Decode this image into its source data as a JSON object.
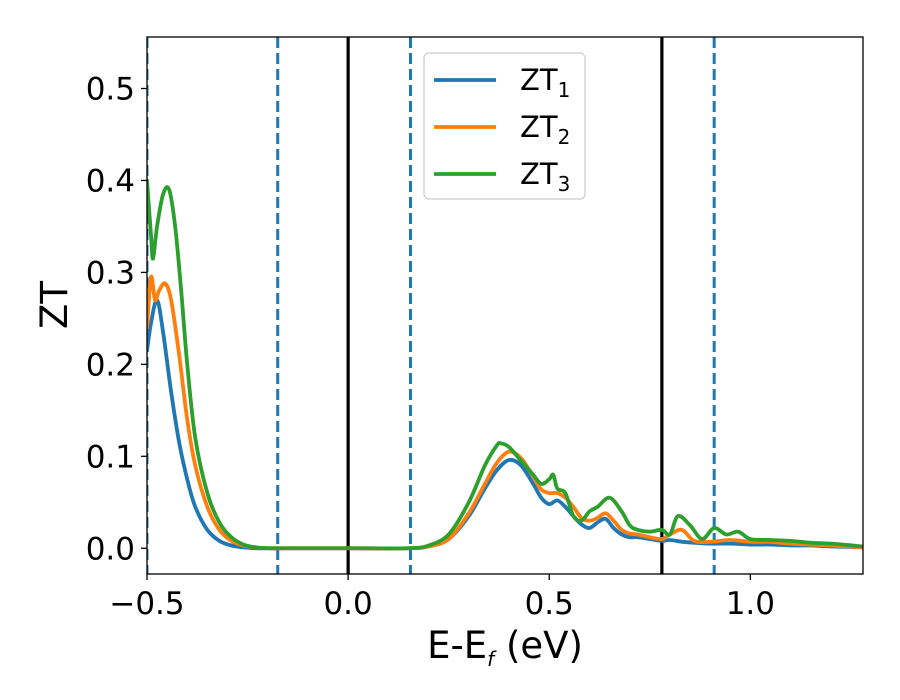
{
  "chart_data": {
    "type": "line",
    "title": "",
    "xlabel": {
      "main": "E-E",
      "sub": "f",
      "unit": " (eV)"
    },
    "ylabel": "ZT",
    "xlim": [
      -0.5,
      1.28
    ],
    "ylim": [
      -0.028,
      0.556
    ],
    "xticks": [
      -0.5,
      0.0,
      0.5,
      1.0
    ],
    "xtick_labels": [
      "−0.5",
      "0.0",
      "0.5",
      "1.0"
    ],
    "yticks": [
      0.0,
      0.1,
      0.2,
      0.3,
      0.4,
      0.5
    ],
    "ytick_labels": [
      "0.0",
      "0.1",
      "0.2",
      "0.3",
      "0.4",
      "0.5"
    ],
    "grid": false,
    "legend": "top-center",
    "vlines": [
      {
        "x": -0.5,
        "style": "dashed",
        "color": "#1f77b4"
      },
      {
        "x": -0.175,
        "style": "dashed",
        "color": "#1f77b4"
      },
      {
        "x": 0.0,
        "style": "solid",
        "color": "#000000"
      },
      {
        "x": 0.155,
        "style": "dashed",
        "color": "#1f77b4"
      },
      {
        "x": 0.78,
        "style": "solid",
        "color": "#000000"
      },
      {
        "x": 0.91,
        "style": "dashed",
        "color": "#1f77b4"
      }
    ],
    "series": [
      {
        "name": "ZT",
        "sub": "1",
        "color": "#1f77b4",
        "x": [
          -0.5,
          -0.49,
          -0.475,
          -0.46,
          -0.44,
          -0.42,
          -0.4,
          -0.38,
          -0.35,
          -0.32,
          -0.29,
          -0.26,
          -0.23,
          -0.2,
          -0.15,
          0.0,
          0.15,
          0.2,
          0.25,
          0.3,
          0.34,
          0.37,
          0.4,
          0.43,
          0.46,
          0.48,
          0.5,
          0.52,
          0.54,
          0.56,
          0.58,
          0.6,
          0.62,
          0.64,
          0.66,
          0.68,
          0.7,
          0.72,
          0.75,
          0.78,
          0.8,
          0.83,
          0.86,
          0.9,
          0.95,
          1.0,
          1.05,
          1.1,
          1.15,
          1.2,
          1.28
        ],
        "y": [
          0.215,
          0.245,
          0.27,
          0.235,
          0.17,
          0.115,
          0.075,
          0.045,
          0.02,
          0.008,
          0.003,
          0.001,
          0.0,
          0.0,
          0.0,
          0.0,
          0.0,
          0.002,
          0.01,
          0.035,
          0.065,
          0.085,
          0.096,
          0.09,
          0.07,
          0.055,
          0.048,
          0.052,
          0.045,
          0.035,
          0.026,
          0.022,
          0.028,
          0.032,
          0.022,
          0.015,
          0.012,
          0.012,
          0.01,
          0.008,
          0.009,
          0.007,
          0.006,
          0.005,
          0.005,
          0.004,
          0.004,
          0.003,
          0.003,
          0.002,
          0.001
        ]
      },
      {
        "name": "ZT",
        "sub": "2",
        "color": "#ff7f0e",
        "x": [
          -0.5,
          -0.49,
          -0.48,
          -0.47,
          -0.455,
          -0.44,
          -0.42,
          -0.4,
          -0.38,
          -0.35,
          -0.32,
          -0.29,
          -0.26,
          -0.23,
          -0.2,
          -0.15,
          0.0,
          0.15,
          0.2,
          0.25,
          0.3,
          0.34,
          0.37,
          0.4,
          0.43,
          0.46,
          0.48,
          0.5,
          0.52,
          0.54,
          0.56,
          0.58,
          0.6,
          0.62,
          0.64,
          0.66,
          0.68,
          0.7,
          0.72,
          0.75,
          0.78,
          0.8,
          0.83,
          0.86,
          0.9,
          0.95,
          1.0,
          1.05,
          1.1,
          1.15,
          1.2,
          1.28
        ],
        "y": [
          0.24,
          0.295,
          0.27,
          0.28,
          0.288,
          0.27,
          0.21,
          0.14,
          0.09,
          0.045,
          0.02,
          0.008,
          0.003,
          0.001,
          0.0,
          0.0,
          0.0,
          0.0,
          0.002,
          0.01,
          0.038,
          0.07,
          0.093,
          0.105,
          0.098,
          0.078,
          0.064,
          0.06,
          0.06,
          0.055,
          0.045,
          0.033,
          0.03,
          0.033,
          0.038,
          0.03,
          0.02,
          0.016,
          0.015,
          0.012,
          0.01,
          0.015,
          0.02,
          0.008,
          0.007,
          0.009,
          0.007,
          0.007,
          0.005,
          0.004,
          0.003,
          0.001
        ]
      },
      {
        "name": "ZT",
        "sub": "3",
        "color": "#2ca02c",
        "x": [
          -0.5,
          -0.49,
          -0.485,
          -0.475,
          -0.46,
          -0.445,
          -0.43,
          -0.415,
          -0.4,
          -0.38,
          -0.35,
          -0.32,
          -0.29,
          -0.26,
          -0.23,
          -0.2,
          -0.15,
          0.0,
          0.15,
          0.2,
          0.25,
          0.3,
          0.34,
          0.37,
          0.38,
          0.4,
          0.43,
          0.46,
          0.48,
          0.5,
          0.51,
          0.52,
          0.54,
          0.56,
          0.58,
          0.6,
          0.62,
          0.65,
          0.68,
          0.7,
          0.72,
          0.75,
          0.78,
          0.8,
          0.82,
          0.85,
          0.88,
          0.91,
          0.94,
          0.97,
          1.0,
          1.05,
          1.1,
          1.15,
          1.2,
          1.28
        ],
        "y": [
          0.4,
          0.34,
          0.315,
          0.35,
          0.385,
          0.39,
          0.35,
          0.28,
          0.2,
          0.12,
          0.06,
          0.028,
          0.012,
          0.004,
          0.001,
          0.0,
          0.0,
          0.0,
          0.0,
          0.003,
          0.015,
          0.05,
          0.09,
          0.112,
          0.114,
          0.11,
          0.095,
          0.08,
          0.07,
          0.075,
          0.08,
          0.065,
          0.06,
          0.035,
          0.03,
          0.04,
          0.045,
          0.055,
          0.04,
          0.025,
          0.02,
          0.018,
          0.02,
          0.015,
          0.035,
          0.025,
          0.01,
          0.022,
          0.015,
          0.018,
          0.01,
          0.009,
          0.008,
          0.006,
          0.005,
          0.002
        ]
      }
    ]
  }
}
